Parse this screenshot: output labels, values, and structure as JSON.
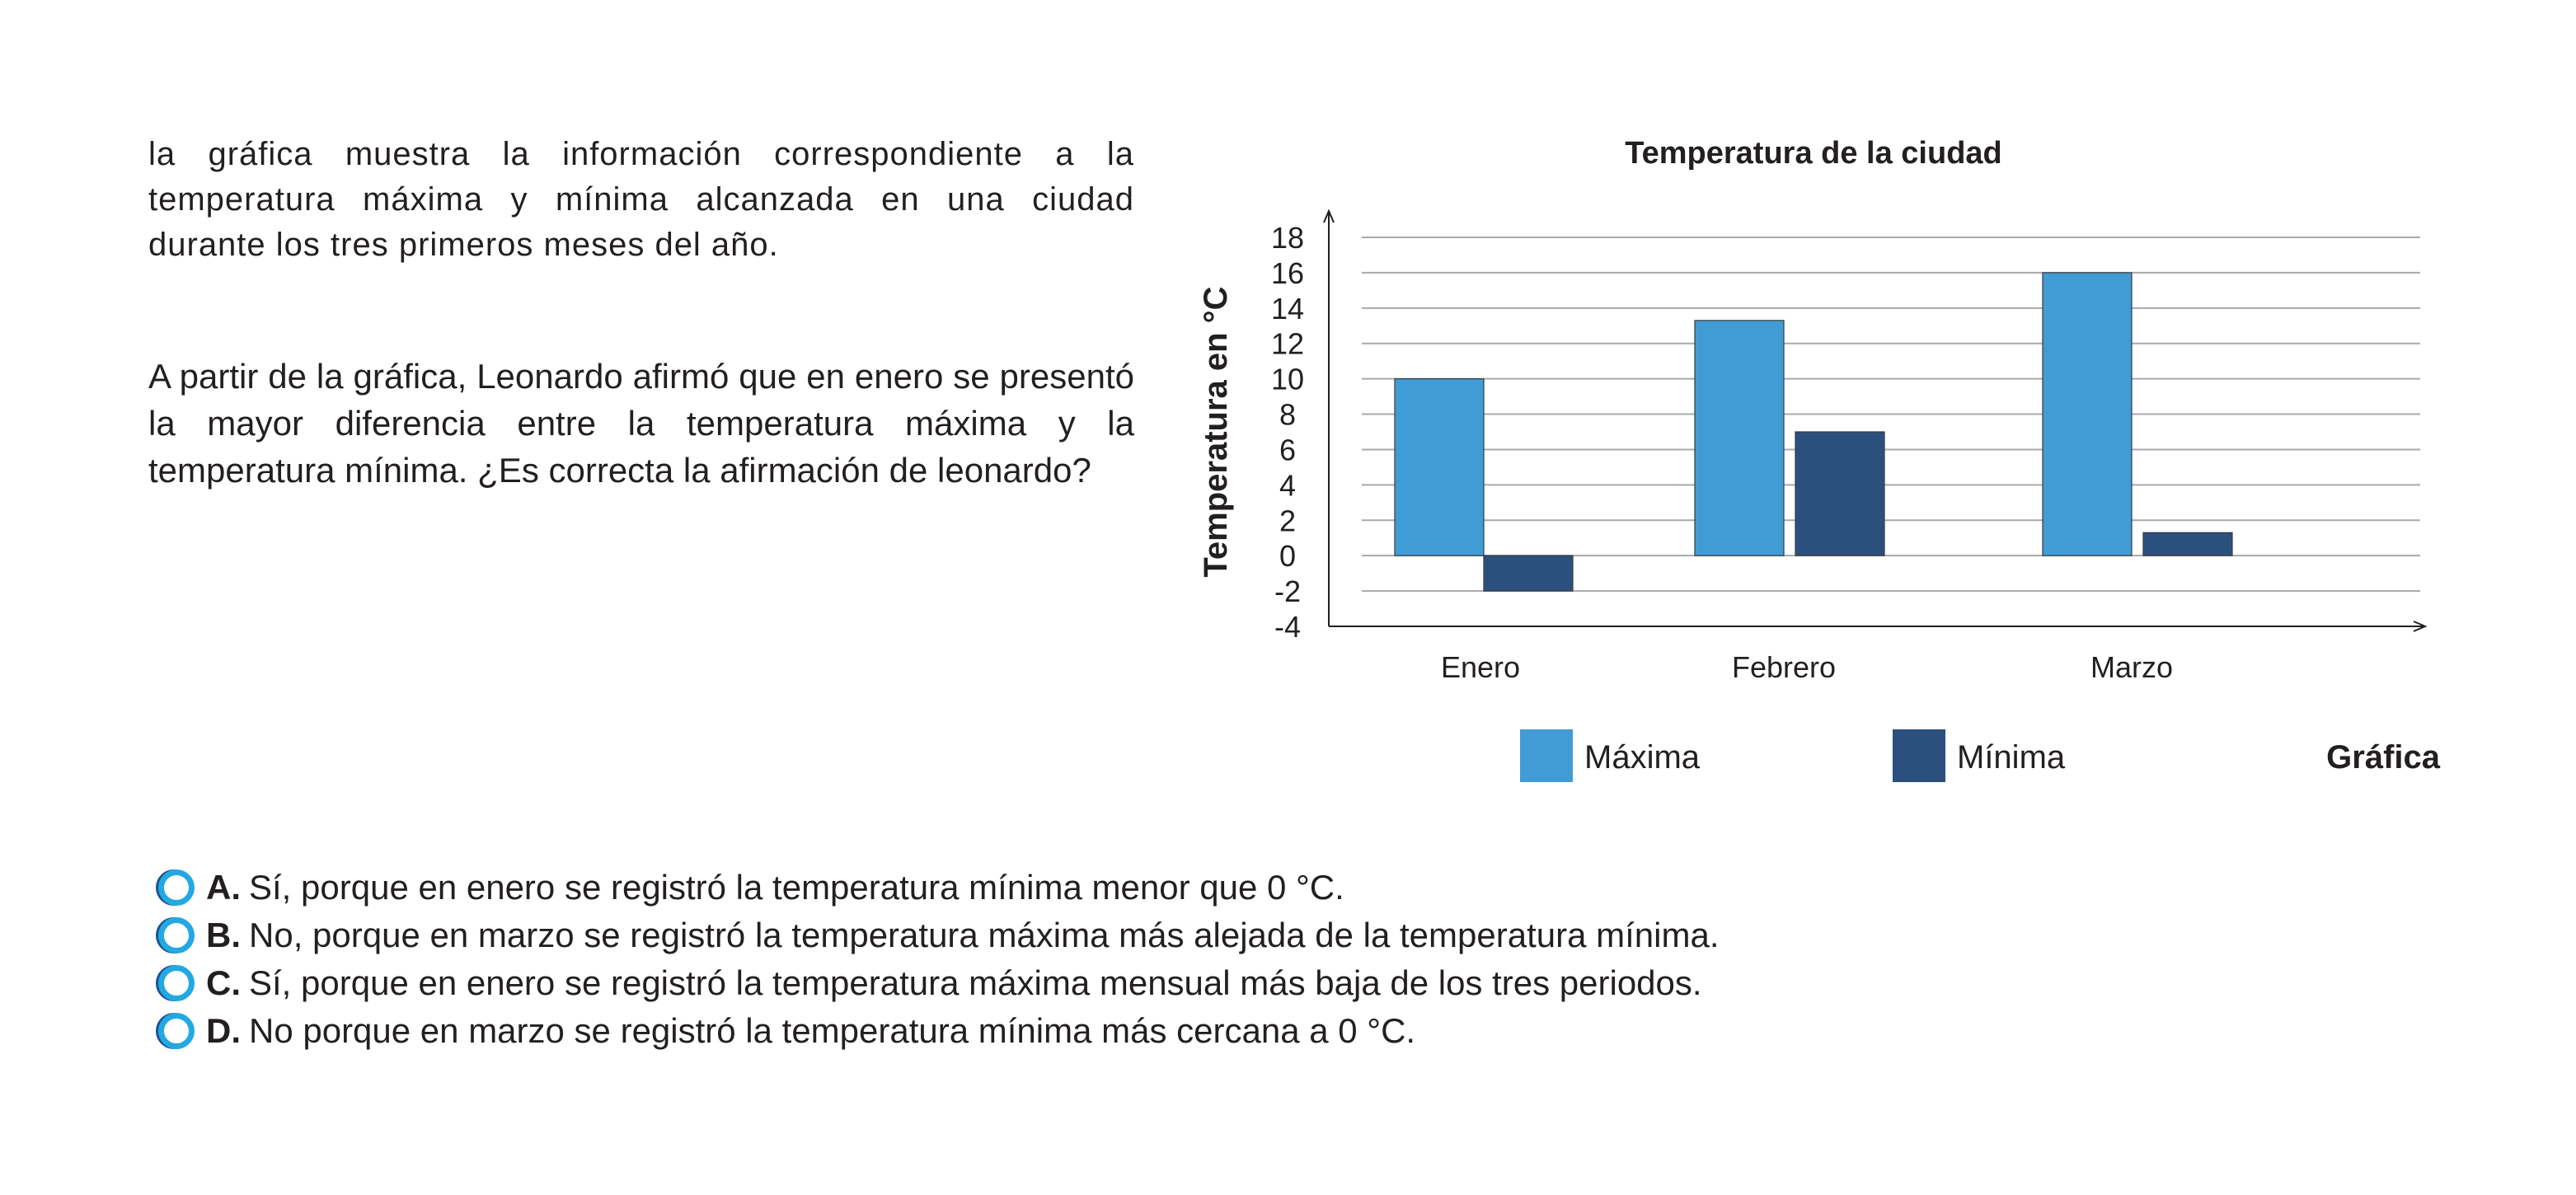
{
  "intro": "la gráfica muestra la información correspondiente a la temperatura máxima y mínima alcanzada en una ciudad durante los tres primeros meses del año.",
  "question": "A partir de la gráfica, Leonardo afirmó que en enero se presentó la mayor diferencia entre la temperatura máxima y la temperatura mínima. ¿Es correcta la afirmación de leonardo?",
  "figure_caption": "Gráfica",
  "options": [
    {
      "letter": "A.",
      "text": "Sí, porque en enero se registró la temperatura mínima menor que 0 °C."
    },
    {
      "letter": "B.",
      "text": "No, porque en marzo se registró la temperatura máxima más alejada de la temperatura mínima."
    },
    {
      "letter": "C.",
      "text": "Sí, porque en enero se registró la temperatura máxima mensual más baja de los tres periodos."
    },
    {
      "letter": "D.",
      "text": "No porque en marzo se registró la temperatura mínima más cercana a 0 °C."
    }
  ],
  "colors": {
    "maxima": "#419cd6",
    "minima": "#2c507e",
    "radio_ring": "#23a9e1",
    "radio_shadow": "#1d4f8f"
  },
  "chart_data": {
    "type": "bar",
    "title": "Temperatura de la ciudad",
    "xlabel": "",
    "ylabel": "Temperatura en °C",
    "categories": [
      "Enero",
      "Febrero",
      "Marzo"
    ],
    "series": [
      {
        "name": "Máxima",
        "values": [
          10,
          13.3,
          16
        ]
      },
      {
        "name": "Mínima",
        "values": [
          -2,
          7,
          1.3
        ]
      }
    ],
    "ylim": [
      -4,
      18
    ],
    "yticks": [
      18,
      16,
      14,
      12,
      10,
      8,
      6,
      4,
      2,
      0,
      -2,
      -4
    ],
    "grid": true,
    "legend": "bottom"
  }
}
